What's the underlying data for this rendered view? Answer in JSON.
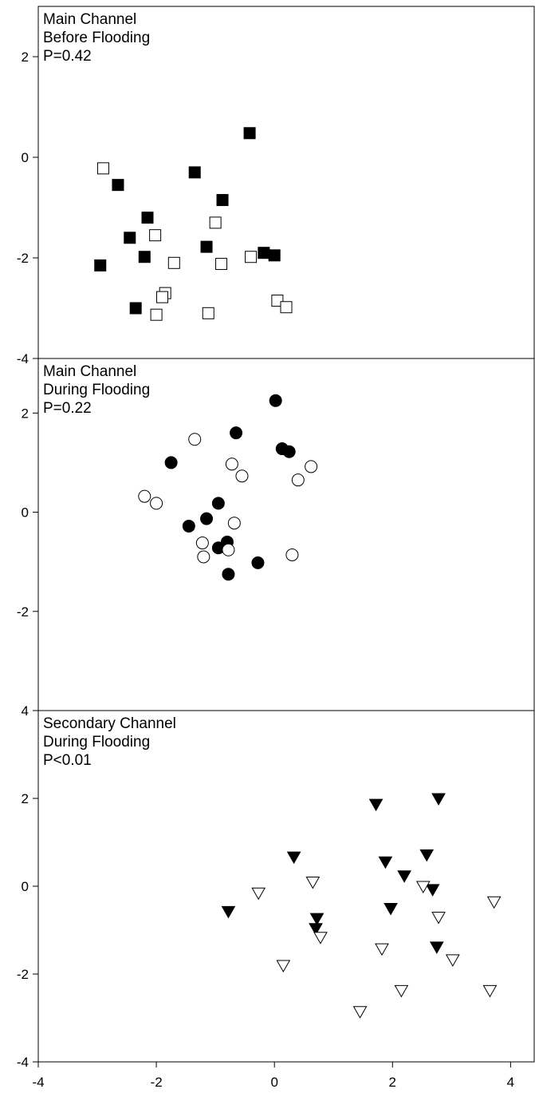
{
  "chart_data": {
    "type": "scatter",
    "grid": false,
    "x_axis": {
      "ticks": [
        -4,
        -2,
        0,
        2,
        4
      ],
      "xlim": [
        -4,
        4.4
      ]
    },
    "panels": [
      {
        "labels": [
          "Main Channel",
          "Before Flooding",
          "P=0.42"
        ],
        "ylim": [
          -4,
          3
        ],
        "y_ticks": [
          -4,
          -2,
          0,
          2
        ],
        "marker": "square",
        "series": [
          {
            "fill": "#000000",
            "points": [
              [
                -0.42,
                0.48
              ],
              [
                -1.35,
                -0.3
              ],
              [
                -0.88,
                -0.85
              ],
              [
                -2.65,
                -0.55
              ],
              [
                -2.15,
                -1.2
              ],
              [
                -2.45,
                -1.6
              ],
              [
                -1.15,
                -1.78
              ],
              [
                -0.18,
                -1.9
              ],
              [
                0.0,
                -1.95
              ],
              [
                -2.2,
                -1.98
              ],
              [
                -2.95,
                -2.15
              ],
              [
                -2.35,
                -3.0
              ]
            ]
          },
          {
            "fill": "#ffffff",
            "points": [
              [
                -2.9,
                -0.22
              ],
              [
                -1.0,
                -1.3
              ],
              [
                -2.02,
                -1.55
              ],
              [
                -0.4,
                -1.98
              ],
              [
                -1.7,
                -2.1
              ],
              [
                -0.9,
                -2.12
              ],
              [
                -1.85,
                -2.7
              ],
              [
                -1.9,
                -2.78
              ],
              [
                0.05,
                -2.85
              ],
              [
                0.2,
                -2.98
              ],
              [
                -1.12,
                -3.1
              ],
              [
                -2.0,
                -3.13
              ]
            ]
          }
        ]
      },
      {
        "labels": [
          "Main Channel",
          "During Flooding",
          "P=0.22"
        ],
        "ylim": [
          -4,
          3.1
        ],
        "y_ticks": [
          -2,
          0,
          2
        ],
        "marker": "circle",
        "series": [
          {
            "fill": "#000000",
            "points": [
              [
                0.02,
                2.25
              ],
              [
                -0.65,
                1.6
              ],
              [
                0.13,
                1.28
              ],
              [
                0.25,
                1.22
              ],
              [
                -1.75,
                1.0
              ],
              [
                -0.95,
                0.18
              ],
              [
                -1.45,
                -0.28
              ],
              [
                -1.15,
                -0.13
              ],
              [
                -0.95,
                -0.72
              ],
              [
                -0.8,
                -0.6
              ],
              [
                -0.78,
                -1.25
              ],
              [
                -0.28,
                -1.02
              ]
            ]
          },
          {
            "fill": "#ffffff",
            "points": [
              [
                -1.35,
                1.47
              ],
              [
                -0.72,
                0.97
              ],
              [
                0.62,
                0.92
              ],
              [
                -0.55,
                0.73
              ],
              [
                0.4,
                0.65
              ],
              [
                -2.2,
                0.32
              ],
              [
                -2.0,
                0.18
              ],
              [
                -0.68,
                -0.22
              ],
              [
                -1.22,
                -0.62
              ],
              [
                -1.2,
                -0.9
              ],
              [
                -0.78,
                -0.76
              ],
              [
                0.3,
                -0.86
              ]
            ]
          }
        ]
      },
      {
        "labels": [
          "Secondary Channel",
          "During Flooding",
          "P<0.01"
        ],
        "ylim": [
          -4,
          4
        ],
        "y_ticks": [
          -4,
          -2,
          0,
          2,
          4
        ],
        "marker": "triangle-down",
        "series": [
          {
            "fill": "#000000",
            "points": [
              [
                2.78,
                2.0
              ],
              [
                1.72,
                1.87
              ],
              [
                0.33,
                0.67
              ],
              [
                1.88,
                0.56
              ],
              [
                2.58,
                0.72
              ],
              [
                2.2,
                0.24
              ],
              [
                2.68,
                -0.07
              ],
              [
                -0.78,
                -0.57
              ],
              [
                0.72,
                -0.73
              ],
              [
                1.97,
                -0.5
              ],
              [
                0.7,
                -0.96
              ],
              [
                2.75,
                -1.38
              ]
            ]
          },
          {
            "fill": "#ffffff",
            "points": [
              [
                -0.27,
                -0.15
              ],
              [
                0.65,
                0.1
              ],
              [
                2.52,
                0.0
              ],
              [
                3.72,
                -0.35
              ],
              [
                2.78,
                -0.7
              ],
              [
                0.78,
                -1.16
              ],
              [
                1.82,
                -1.42
              ],
              [
                3.02,
                -1.67
              ],
              [
                0.15,
                -1.8
              ],
              [
                2.15,
                -2.37
              ],
              [
                3.65,
                -2.37
              ],
              [
                1.45,
                -2.85
              ]
            ]
          }
        ]
      }
    ]
  }
}
